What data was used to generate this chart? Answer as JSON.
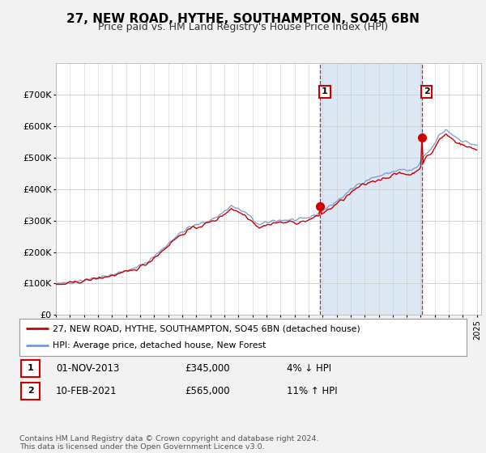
{
  "title": "27, NEW ROAD, HYTHE, SOUTHAMPTON, SO45 6BN",
  "subtitle": "Price paid vs. HM Land Registry's House Price Index (HPI)",
  "ylim": [
    0,
    800000
  ],
  "yticks": [
    0,
    100000,
    200000,
    300000,
    400000,
    500000,
    600000,
    700000
  ],
  "ytick_labels": [
    "£0",
    "£100K",
    "£200K",
    "£300K",
    "£400K",
    "£500K",
    "£600K",
    "£700K"
  ],
  "background_color": "#f2f2f2",
  "plot_bg_color": "#ffffff",
  "red_line_color": "#cc0000",
  "blue_line_color": "#7799cc",
  "span_color": "#dde8f5",
  "vline_color": "#cc0000",
  "marker1_year": 2013.83,
  "marker2_year": 2021.1,
  "marker1_value": 345000,
  "marker2_value": 565000,
  "legend_line1": "27, NEW ROAD, HYTHE, SOUTHAMPTON, SO45 6BN (detached house)",
  "legend_line2": "HPI: Average price, detached house, New Forest",
  "table_row1": [
    "1",
    "01-NOV-2013",
    "£345,000",
    "4% ↓ HPI"
  ],
  "table_row2": [
    "2",
    "10-FEB-2021",
    "£565,000",
    "11% ↑ HPI"
  ],
  "footnote": "Contains HM Land Registry data © Crown copyright and database right 2024.\nThis data is licensed under the Open Government Licence v3.0.",
  "title_fontsize": 11,
  "subtitle_fontsize": 9,
  "tick_fontsize": 8
}
